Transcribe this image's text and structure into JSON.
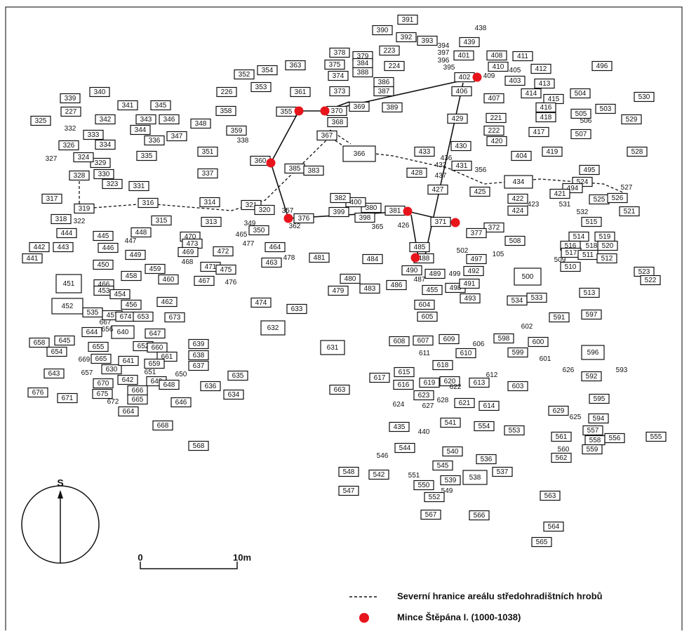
{
  "graves": [
    "391",
    "390",
    "392",
    "393",
    "394",
    "397",
    "396",
    "395",
    "438",
    "439",
    "401",
    "408",
    "411",
    "410",
    "405",
    "402",
    "409",
    "403",
    "412",
    "496",
    "378",
    "379",
    "223",
    "375",
    "384",
    "224",
    "374",
    "388",
    "386",
    "387",
    "373",
    "389",
    "369",
    "370",
    "355",
    "361",
    "352",
    "354",
    "363",
    "226",
    "353",
    "358",
    "359",
    "338",
    "368",
    "367",
    "366",
    "406",
    "407",
    "414",
    "413",
    "415",
    "416",
    "418",
    "504",
    "530",
    "505",
    "503",
    "506",
    "529",
    "507",
    "429",
    "221",
    "222",
    "420",
    "417",
    "430",
    "433",
    "436",
    "432",
    "431",
    "437",
    "356",
    "404",
    "419",
    "528",
    "495",
    "428",
    "427",
    "425",
    "434",
    "524",
    "494",
    "527",
    "421",
    "525",
    "526",
    "422",
    "423",
    "531",
    "424",
    "532",
    "521",
    "515",
    "372",
    "377",
    "371",
    "381",
    "426",
    "365",
    "398",
    "399",
    "380",
    "400",
    "382",
    "376",
    "357",
    "362",
    "385",
    "383",
    "360",
    "351",
    "337",
    "348",
    "347",
    "346",
    "345",
    "341",
    "343",
    "344",
    "336",
    "335",
    "328",
    "329",
    "330",
    "323",
    "331",
    "316",
    "317",
    "319",
    "318",
    "322",
    "315",
    "314",
    "313",
    "321",
    "320",
    "349",
    "350",
    "465",
    "477",
    "464",
    "463",
    "478",
    "481",
    "340",
    "339",
    "227",
    "342",
    "325",
    "332",
    "333",
    "326",
    "334",
    "327",
    "324",
    "444",
    "445",
    "448",
    "447",
    "446",
    "442",
    "443",
    "441",
    "449",
    "450",
    "470",
    "473",
    "469",
    "472",
    "468",
    "471",
    "475",
    "476",
    "459",
    "460",
    "467",
    "458",
    "451",
    "466",
    "453",
    "454",
    "452",
    "462",
    "456",
    "535",
    "457",
    "674",
    "653",
    "673",
    "474",
    "633",
    "632",
    "631",
    "480",
    "483",
    "479",
    "484",
    "485",
    "488",
    "502",
    "105",
    "497",
    "508",
    "514",
    "519",
    "516",
    "518",
    "520",
    "517",
    "511",
    "512",
    "509",
    "510",
    "490",
    "489",
    "499",
    "492",
    "487",
    "486",
    "455",
    "498",
    "491",
    "500",
    "523",
    "522",
    "513",
    "493",
    "534",
    "533",
    "597",
    "604",
    "605",
    "591",
    "602",
    "598",
    "600",
    "608",
    "607",
    "609",
    "611",
    "606",
    "610",
    "599",
    "601",
    "596",
    "618",
    "617",
    "615",
    "616",
    "619",
    "620",
    "622",
    "623",
    "624",
    "627",
    "628",
    "621",
    "613",
    "612",
    "603",
    "626",
    "592",
    "593",
    "614",
    "629",
    "625",
    "595",
    "594",
    "663",
    "435",
    "440",
    "541",
    "554",
    "553",
    "561",
    "557",
    "558",
    "559",
    "556",
    "555",
    "560",
    "562",
    "544",
    "540",
    "546",
    "536",
    "537",
    "545",
    "548",
    "542",
    "551",
    "550",
    "539",
    "538",
    "549",
    "547",
    "552",
    "563",
    "567",
    "566",
    "564",
    "565",
    "658",
    "645",
    "654",
    "644",
    "640",
    "647",
    "652",
    "660",
    "639",
    "638",
    "669",
    "665",
    "655",
    "657",
    "630",
    "641",
    "661",
    "659",
    "651",
    "650",
    "637",
    "635",
    "643",
    "676",
    "671",
    "670",
    "642",
    "675",
    "649",
    "648",
    "666",
    "665",
    "672",
    "636",
    "634",
    "646",
    "664",
    "668",
    "568",
    "656",
    "667"
  ],
  "compass": {
    "label": "S"
  },
  "scale": {
    "start": "0",
    "end": "10m"
  },
  "legend": [
    {
      "label": "Severní hranice areálu středohradištních hrobů"
    },
    {
      "label": "Mince Štěpána I. (1000-1038)"
    }
  ]
}
